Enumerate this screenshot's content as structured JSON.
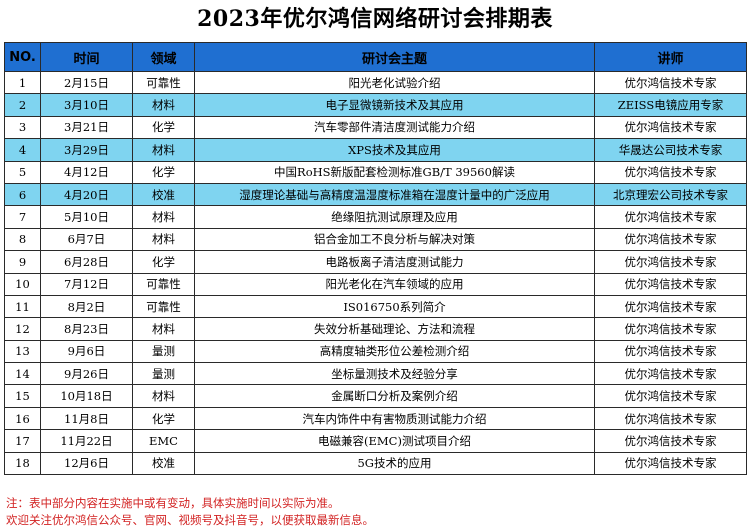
{
  "title": "2023年优尔鸿信网络研讨会排期表",
  "columns": [
    "NO.",
    "时间",
    "领域",
    "研讨会主题",
    "讲师"
  ],
  "rows": [
    {
      "no": "1",
      "date": "2月15日",
      "field": "可靠性",
      "topic": "阳光老化试验介绍",
      "lecturer": "优尔鸿信技术专家",
      "highlight": false
    },
    {
      "no": "2",
      "date": "3月10日",
      "field": "材料",
      "topic": "电子显微镜新技术及其应用",
      "lecturer": "ZEISS电镜应用专家",
      "highlight": true
    },
    {
      "no": "3",
      "date": "3月21日",
      "field": "化学",
      "topic": "汽车零部件清洁度测试能力介绍",
      "lecturer": "优尔鸿信技术专家",
      "highlight": false
    },
    {
      "no": "4",
      "date": "3月29日",
      "field": "材料",
      "topic": "XPS技术及其应用",
      "lecturer": "华晟达公司技术专家",
      "highlight": true
    },
    {
      "no": "5",
      "date": "4月12日",
      "field": "化学",
      "topic": "中国RoHS新版配套检测标准GB/T 39560解读",
      "lecturer": "优尔鸿信技术专家",
      "highlight": false
    },
    {
      "no": "6",
      "date": "4月20日",
      "field": "校准",
      "topic": "湿度理论基础与高精度温湿度标准箱在湿度计量中的广泛应用",
      "lecturer": "北京理宏公司技术专家",
      "highlight": true
    },
    {
      "no": "7",
      "date": "5月10日",
      "field": "材料",
      "topic": "绝缘阻抗测试原理及应用",
      "lecturer": "优尔鸿信技术专家",
      "highlight": false
    },
    {
      "no": "8",
      "date": "6月7日",
      "field": "材料",
      "topic": "铝合金加工不良分析与解决对策",
      "lecturer": "优尔鸿信技术专家",
      "highlight": false
    },
    {
      "no": "9",
      "date": "6月28日",
      "field": "化学",
      "topic": "电路板离子清洁度测试能力",
      "lecturer": "优尔鸿信技术专家",
      "highlight": false
    },
    {
      "no": "10",
      "date": "7月12日",
      "field": "可靠性",
      "topic": "阳光老化在汽车领域的应用",
      "lecturer": "优尔鸿信技术专家",
      "highlight": false
    },
    {
      "no": "11",
      "date": "8月2日",
      "field": "可靠性",
      "topic": "IS016750系列简介",
      "lecturer": "优尔鸿信技术专家",
      "highlight": false
    },
    {
      "no": "12",
      "date": "8月23日",
      "field": "材料",
      "topic": "失效分析基础理论、方法和流程",
      "lecturer": "优尔鸿信技术专家",
      "highlight": false
    },
    {
      "no": "13",
      "date": "9月6日",
      "field": "量测",
      "topic": "高精度轴类形位公差检测介绍",
      "lecturer": "优尔鸿信技术专家",
      "highlight": false
    },
    {
      "no": "14",
      "date": "9月26日",
      "field": "量测",
      "topic": "坐标量测技术及经验分享",
      "lecturer": "优尔鸿信技术专家",
      "highlight": false
    },
    {
      "no": "15",
      "date": "10月18日",
      "field": "材料",
      "topic": "金属断口分析及案例介绍",
      "lecturer": "优尔鸿信技术专家",
      "highlight": false
    },
    {
      "no": "16",
      "date": "11月8日",
      "field": "化学",
      "topic": "汽车内饰件中有害物质测试能力介绍",
      "lecturer": "优尔鸿信技术专家",
      "highlight": false
    },
    {
      "no": "17",
      "date": "11月22日",
      "field": "EMC",
      "topic": "电磁兼容(EMC)测试项目介绍",
      "lecturer": "优尔鸿信技术专家",
      "highlight": false
    },
    {
      "no": "18",
      "date": "12月6日",
      "field": "校准",
      "topic": "5G技术的应用",
      "lecturer": "优尔鸿信技术专家",
      "highlight": false
    }
  ],
  "notes": [
    "注：表中部分内容在实施中或有变动，具体实施时间以实际为准。",
    "欢迎关注优尔鸿信公众号、官网、视频号及抖音号，以便获取最新信息。"
  ],
  "colors": {
    "header_bg": "#1f6fd1",
    "highlight_row_bg": "#7fd4f0",
    "note_text": "#d22222"
  }
}
